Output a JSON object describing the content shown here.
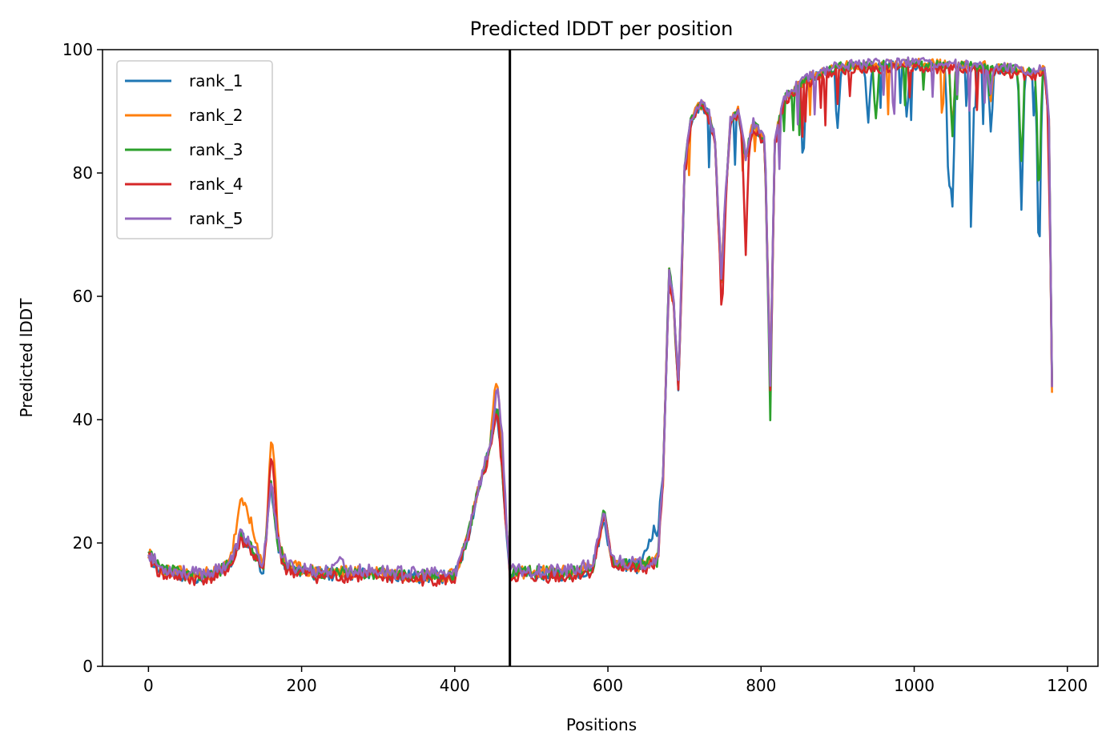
{
  "chart_data": {
    "type": "line",
    "title": "Predicted lDDT per position",
    "xlabel": "Positions",
    "ylabel": "Predicted lDDT",
    "xlim": [
      -60,
      1240
    ],
    "ylim": [
      0,
      100
    ],
    "xticks": [
      0,
      200,
      400,
      600,
      800,
      1000,
      1200
    ],
    "yticks": [
      0,
      20,
      40,
      60,
      80,
      100
    ],
    "grid": false,
    "legend_position": "top-left",
    "vline": {
      "x": 472,
      "color": "#000000"
    },
    "keypoints": [
      [
        0,
        18
      ],
      [
        15,
        15.5
      ],
      [
        60,
        14.5
      ],
      [
        90,
        15
      ],
      [
        110,
        17
      ],
      [
        120,
        21
      ],
      [
        130,
        20
      ],
      [
        150,
        15.5
      ],
      [
        160,
        30
      ],
      [
        168,
        20
      ],
      [
        180,
        16
      ],
      [
        220,
        15
      ],
      [
        300,
        15
      ],
      [
        350,
        14.5
      ],
      [
        400,
        14.5
      ],
      [
        415,
        20
      ],
      [
        430,
        28
      ],
      [
        445,
        35
      ],
      [
        455,
        42
      ],
      [
        462,
        32
      ],
      [
        472,
        15
      ],
      [
        550,
        15
      ],
      [
        580,
        16
      ],
      [
        595,
        24
      ],
      [
        605,
        17
      ],
      [
        640,
        16
      ],
      [
        665,
        17
      ],
      [
        672,
        30
      ],
      [
        680,
        64
      ],
      [
        686,
        58
      ],
      [
        692,
        45
      ],
      [
        700,
        80
      ],
      [
        708,
        88
      ],
      [
        720,
        91
      ],
      [
        730,
        90
      ],
      [
        740,
        85
      ],
      [
        748,
        62
      ],
      [
        752,
        72
      ],
      [
        760,
        88
      ],
      [
        770,
        90
      ],
      [
        780,
        82
      ],
      [
        790,
        88
      ],
      [
        805,
        85
      ],
      [
        812,
        45
      ],
      [
        818,
        85
      ],
      [
        830,
        92
      ],
      [
        860,
        95
      ],
      [
        900,
        97
      ],
      [
        1000,
        97.5
      ],
      [
        1100,
        97
      ],
      [
        1160,
        96
      ],
      [
        1170,
        97
      ],
      [
        1176,
        88
      ],
      [
        1180,
        45
      ]
    ],
    "series": [
      {
        "name": "rank_1",
        "color": "#1f77b4",
        "bumps": [
          [
            660,
            22,
            8
          ],
          [
            620,
            16.5,
            0
          ],
          [
            170,
            18,
            6
          ]
        ],
        "dips": [
          [
            900,
            10
          ],
          [
            940,
            9
          ],
          [
            990,
            8
          ],
          [
            1045,
            18
          ],
          [
            1050,
            22
          ],
          [
            1075,
            20
          ],
          [
            1100,
            10
          ],
          [
            1140,
            22
          ],
          [
            1163,
            30
          ],
          [
            855,
            12
          ]
        ],
        "offset": 0,
        "seed": 11
      },
      {
        "name": "rank_2",
        "color": "#ff7f0e",
        "bumps": [
          [
            125,
            26,
            10
          ],
          [
            163,
            35,
            4
          ],
          [
            455,
            47,
            4
          ]
        ],
        "dips": [
          [
            1050,
            10
          ],
          [
            1100,
            6
          ]
        ],
        "offset": 0.3,
        "seed": 23
      },
      {
        "name": "rank_3",
        "color": "#2ca02c",
        "bumps": [
          [
            595,
            25,
            5
          ],
          [
            450,
            34,
            5
          ]
        ],
        "dips": [
          [
            950,
            8
          ],
          [
            1050,
            12
          ],
          [
            1140,
            15
          ],
          [
            1163,
            20
          ],
          [
            812,
            5
          ]
        ],
        "offset": 0.2,
        "seed": 37
      },
      {
        "name": "rank_4",
        "color": "#d62728",
        "bumps": [
          [
            120,
            21,
            8
          ],
          [
            163,
            32,
            4
          ],
          [
            595,
            25,
            5
          ]
        ],
        "dips": [
          [
            780,
            14
          ],
          [
            750,
            6
          ]
        ],
        "offset": -0.4,
        "seed": 41
      },
      {
        "name": "rank_5",
        "color": "#9467bd",
        "bumps": [
          [
            250,
            18,
            3
          ],
          [
            460,
            40,
            4
          ]
        ],
        "dips": [
          [
            1100,
            4
          ]
        ],
        "offset": 0.5,
        "seed": 53
      }
    ]
  }
}
